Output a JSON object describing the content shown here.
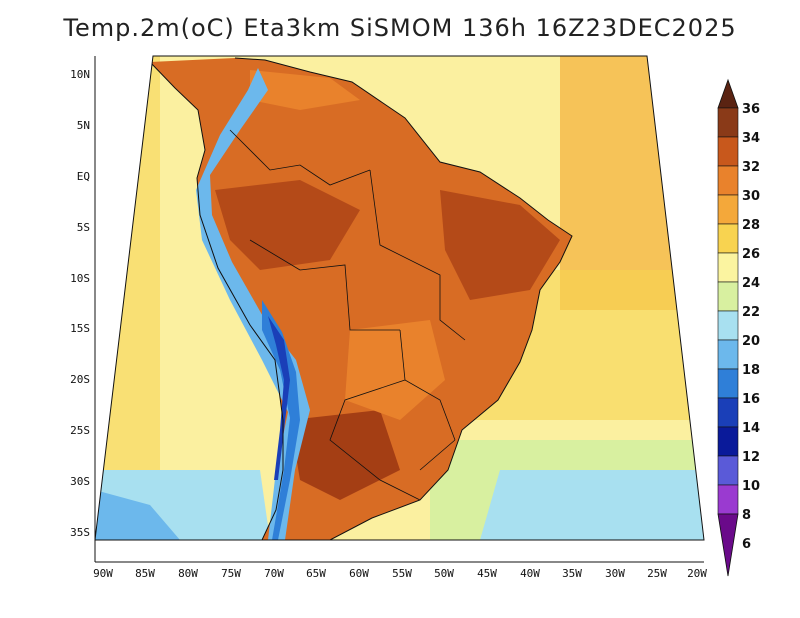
{
  "title": "Temp.2m(oC) Eta3km SiSMOM 136h 16Z23DEC2025",
  "lat_labels": [
    "10N",
    "5N",
    "EQ",
    "5S",
    "10S",
    "15S",
    "20S",
    "25S",
    "30S",
    "35S"
  ],
  "lon_labels": [
    "90W",
    "85W",
    "80W",
    "75W",
    "70W",
    "65W",
    "60W",
    "55W",
    "50W",
    "45W",
    "40W",
    "35W",
    "30W",
    "25W",
    "20W"
  ],
  "colorbar": {
    "labels": [
      "36",
      "34",
      "32",
      "30",
      "28",
      "26",
      "24",
      "22",
      "20",
      "18",
      "16",
      "14",
      "12",
      "10",
      "8",
      "6"
    ],
    "colors": {
      "t36": "#5a2312",
      "t34": "#8a3a18",
      "t32": "#c8581c",
      "t30": "#e9822c",
      "t28": "#f4a83a",
      "t26": "#f8d350",
      "t24": "#fbf4a0",
      "t22": "#d8f0a0",
      "t20": "#a8e0f0",
      "t18": "#6cb8ec",
      "t16": "#2f7fd8",
      "t14": "#1a3fb8",
      "t12": "#0a1a9a",
      "t10": "#5a5ad8",
      "t8": "#9a3ad0",
      "t6": "#6a0a8a"
    }
  }
}
